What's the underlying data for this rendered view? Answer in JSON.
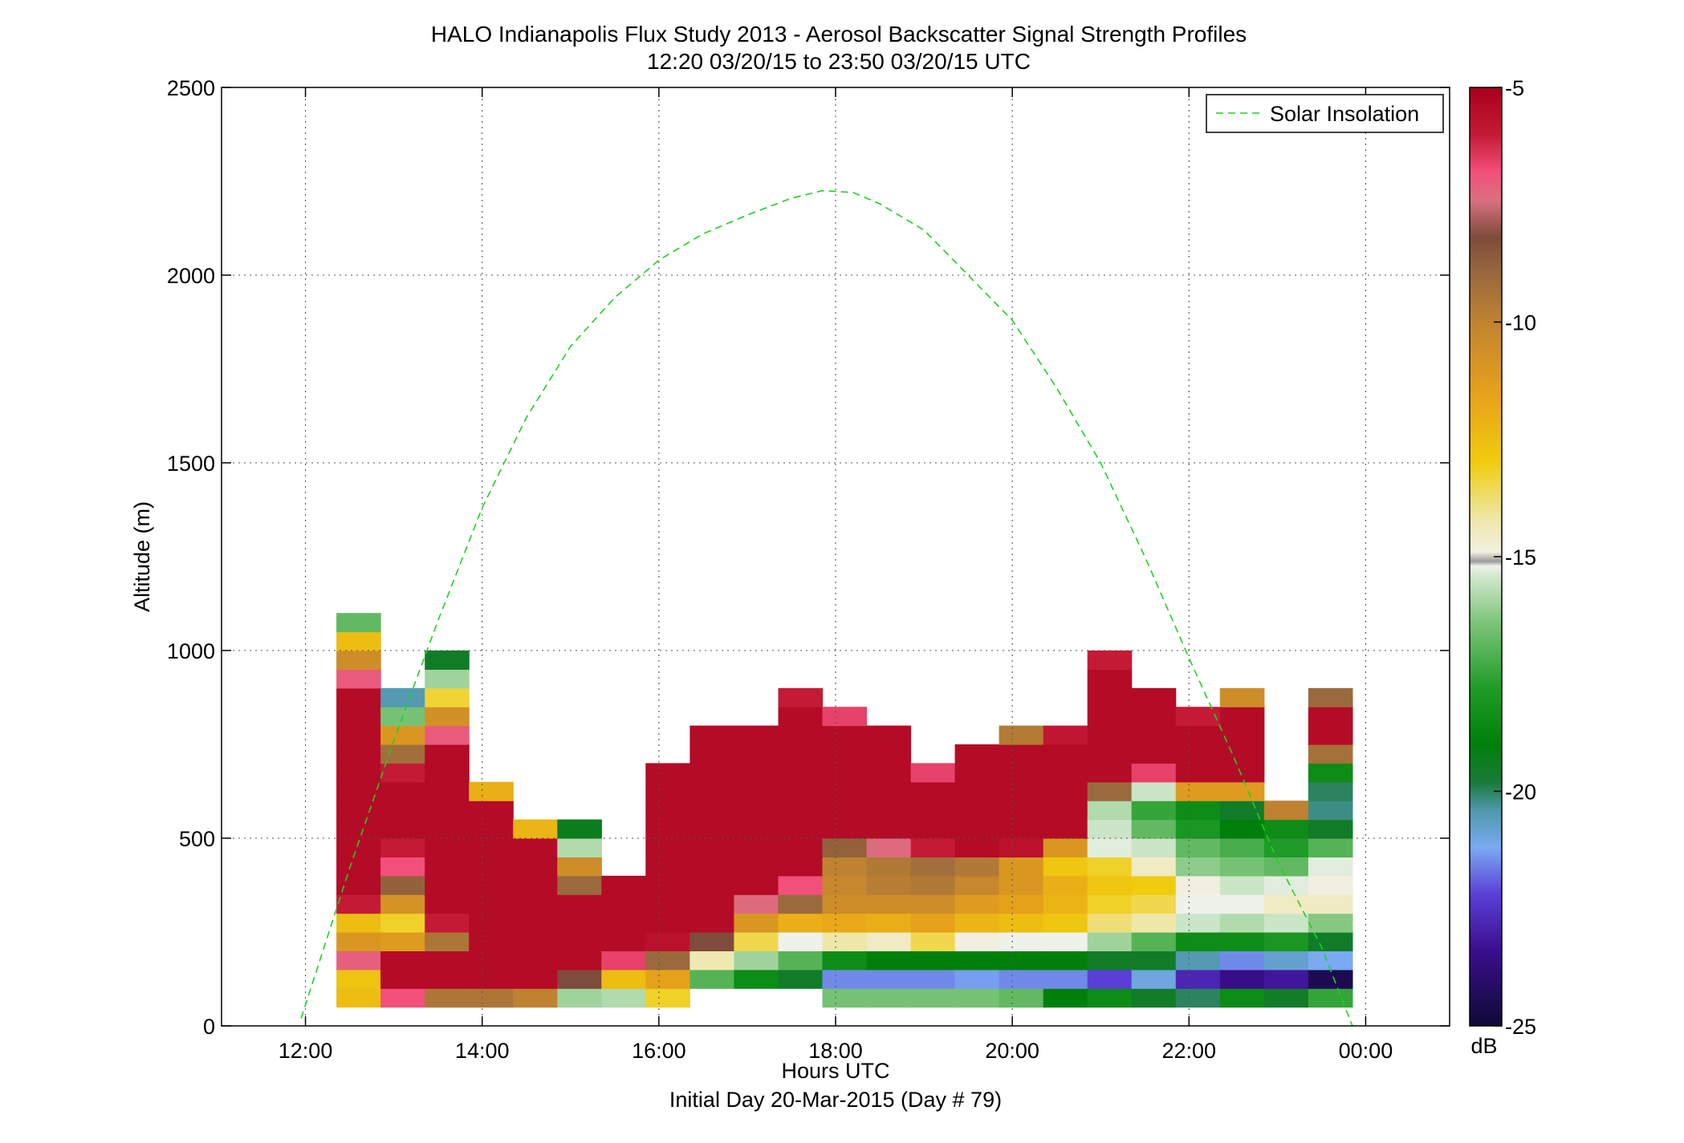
{
  "chart_data": {
    "type": "heatmap",
    "title": "HALO Indianapolis Flux Study 2013 - Aerosol Backscatter Signal Strength Profiles",
    "subtitle": "12:20 03/20/15 to 23:50 03/20/15  UTC",
    "xlabel": "Hours UTC",
    "xlabel2": "Initial Day 20-Mar-2015 (Day # 79)",
    "ylabel": "Altitude (m)",
    "xlim": [
      11.05,
      24.95
    ],
    "ylim": [
      0,
      2500
    ],
    "x_ticks": [
      12,
      14,
      16,
      18,
      20,
      22,
      24
    ],
    "x_tick_labels": [
      "12:00",
      "14:00",
      "16:00",
      "18:00",
      "20:00",
      "22:00",
      "00:00"
    ],
    "y_ticks": [
      0,
      500,
      1000,
      1500,
      2000,
      2500
    ],
    "y_tick_labels": [
      "0",
      "500",
      "1000",
      "1500",
      "2000",
      "2500"
    ],
    "grid": true,
    "legend": {
      "position": "top-right",
      "entries": [
        "Solar Insolation"
      ]
    },
    "colorbar": {
      "label": "dB",
      "range": [
        -25,
        -5
      ],
      "ticks": [
        -5,
        -10,
        -15,
        -20,
        -25
      ],
      "tick_labels": [
        "-5",
        "-10",
        "-15",
        "-20",
        "-25"
      ]
    },
    "cell_width_hours": 0.5,
    "cell_height_m": 50,
    "columns": [
      {
        "x": 12.6,
        "y0": 50,
        "values": [
          -12.5,
          -12.7,
          -7.3,
          -11,
          -12.5,
          -6.2,
          -5.5,
          -5.5,
          -5.5,
          -5.5,
          -5.5,
          -5.5,
          -5.5,
          -5.5,
          -5.5,
          -5.5,
          -5.5,
          -7.2,
          -10.5,
          -12.5,
          -16.8
        ]
      },
      {
        "x": 13.1,
        "y0": 50,
        "values": [
          -7,
          -5.5,
          -5.5,
          -11.2,
          -13.2,
          -10.8,
          -8.8,
          -7,
          -6.2,
          -5.5,
          -5.5,
          -5.5,
          -6.2,
          -9.2,
          -11,
          -16.5,
          -20.5
        ]
      },
      {
        "x": 13.6,
        "y0": 50,
        "values": [
          -9.5,
          -5.5,
          -5.5,
          -9.5,
          -6.2,
          -5.5,
          -5.5,
          -5.5,
          -5.5,
          -5.5,
          -5.5,
          -5.5,
          -5.5,
          -5.5,
          -7.2,
          -10.7,
          -13.3,
          -16,
          -19.5
        ]
      },
      {
        "x": 14.1,
        "y0": 50,
        "values": [
          -9.5,
          -5.5,
          -5.5,
          -5.5,
          -5.5,
          -5.5,
          -5.5,
          -5.5,
          -5.5,
          -5.5,
          -5.5,
          -12
        ]
      },
      {
        "x": 14.6,
        "y0": 50,
        "values": [
          -10,
          -5.5,
          -5.5,
          -5.5,
          -5.5,
          -5.5,
          -5.5,
          -5.5,
          -5.5,
          -12.2
        ]
      },
      {
        "x": 15.1,
        "y0": 50,
        "values": [
          -16,
          -8.2,
          -5.5,
          -5.5,
          -5.5,
          -5.5,
          -9,
          -10.5,
          -15.8,
          -19.3
        ]
      },
      {
        "x": 15.6,
        "y0": 50,
        "values": [
          -15.8,
          -12.5,
          -6.8,
          -5.5,
          -5.5,
          -5.5,
          -5.5
        ]
      },
      {
        "x": 16.1,
        "y0": 50,
        "values": [
          -13.2,
          -11.5,
          -9,
          -5.8,
          -5.5,
          -5.5,
          -5.5,
          -5.5,
          -5.5,
          -5.5,
          -5.5,
          -5.5,
          -5.5
        ]
      },
      {
        "x": 16.6,
        "y0": 100,
        "values": [
          -17,
          -14.3,
          -8.2,
          -5.5,
          -5.5,
          -5.5,
          -5.5,
          -5.5,
          -5.5,
          -5.5,
          -5.5,
          -5.5,
          -5.5,
          -5.5
        ]
      },
      {
        "x": 17.1,
        "y0": 100,
        "values": [
          -18.5,
          -16,
          -13.5,
          -11,
          -7.5,
          -5.5,
          -5.5,
          -5.5,
          -5.5,
          -5.5,
          -5.5,
          -5.5,
          -5.5,
          -5.5
        ]
      },
      {
        "x": 17.6,
        "y0": 100,
        "values": [
          -19.5,
          -17,
          -15,
          -12,
          -9,
          -7,
          -5.5,
          -5.5,
          -5.5,
          -5.5,
          -5.5,
          -5.5,
          -5.5,
          -5.5,
          -5.5,
          -6.2
        ]
      },
      {
        "x": 18.1,
        "y0": 50,
        "values": [
          -16.5,
          -21.5,
          -18.5,
          -14.2,
          -11.8,
          -10.5,
          -10.2,
          -10,
          -8.8,
          -5.5,
          -5.5,
          -5.5,
          -5.5,
          -5.5,
          -5.5,
          -6.8
        ]
      },
      {
        "x": 18.6,
        "y0": 50,
        "values": [
          -16.5,
          -21.5,
          -19,
          -14.5,
          -12,
          -10.5,
          -9.8,
          -9.6,
          -7.5,
          -5.5,
          -5.5,
          -5.5,
          -5.5,
          -5.5,
          -5.5
        ]
      },
      {
        "x": 19.1,
        "y0": 50,
        "values": [
          -16.5,
          -21.5,
          -19,
          -13.5,
          -11.5,
          -10.5,
          -9.6,
          -9.2,
          -6.2,
          -5.5,
          -5.5,
          -5.5,
          -6.8
        ]
      },
      {
        "x": 19.6,
        "y0": 50,
        "values": [
          -16.5,
          -21.3,
          -19,
          -14.8,
          -12.2,
          -11.2,
          -10.2,
          -9.6,
          -5.5,
          -5.5,
          -5.5,
          -5.5,
          -5.5,
          -5.5
        ]
      },
      {
        "x": 20.1,
        "y0": 50,
        "values": [
          -16.8,
          -21.5,
          -19,
          -15,
          -12.5,
          -11.5,
          -11,
          -11,
          -5.8,
          -5.5,
          -5.5,
          -5.5,
          -5.5,
          -5.5,
          -9.7
        ]
      },
      {
        "x": 20.6,
        "y0": 50,
        "values": [
          -19,
          -21.5,
          -19,
          -15,
          -12.8,
          -12.2,
          -12,
          -12.8,
          -11,
          -5.5,
          -5.5,
          -5.5,
          -5.5,
          -5.5,
          -6
        ]
      },
      {
        "x": 21.1,
        "y0": 50,
        "values": [
          -18.5,
          -22.2,
          -19.5,
          -16,
          -13.8,
          -13.2,
          -12.8,
          -13.2,
          -15.2,
          -15.5,
          -15.8,
          -9,
          -5.5,
          -5.5,
          -5.5,
          -5.5,
          -5.5,
          -5.5,
          -6.2
        ]
      },
      {
        "x": 21.6,
        "y0": 50,
        "values": [
          -19.5,
          -21,
          -19.5,
          -17,
          -14.2,
          -13.5,
          -13,
          -14.5,
          -15.5,
          -16.8,
          -17.5,
          -15.5,
          -6.8,
          -5.5,
          -5.5,
          -5.5,
          -5.5
        ]
      },
      {
        "x": 22.1,
        "y0": 50,
        "values": [
          -20,
          -22.8,
          -20.5,
          -18.5,
          -15.5,
          -15,
          -14.8,
          -16.2,
          -16.8,
          -18,
          -18.5,
          -11.2,
          -5.5,
          -5.5,
          -5.5,
          -6.2
        ]
      },
      {
        "x": 22.6,
        "y0": 50,
        "values": [
          -18.5,
          -23.5,
          -21.5,
          -18.5,
          -15.8,
          -15,
          -15.5,
          -16.5,
          -17.2,
          -19,
          -19.5,
          -11.2,
          -5.5,
          -5.5,
          -5.5,
          -5.5,
          -10.5
        ]
      },
      {
        "x": 23.1,
        "y0": 50,
        "values": [
          -19.5,
          -23.2,
          -20.8,
          -18,
          -15.5,
          -14.5,
          -15.2,
          -16.8,
          -17.8,
          -18.5,
          -10
        ]
      },
      {
        "x": 23.6,
        "y0": 50,
        "values": [
          -17.5,
          -24.5,
          -21.2,
          -19.5,
          -16.3,
          -14.5,
          -14.8,
          -15.2,
          -17,
          -19.5,
          -20.2,
          -20,
          -18.5,
          -9.3,
          -5.5,
          -5.5,
          -9
        ]
      }
    ],
    "solar_insolation": {
      "x": [
        11.95,
        12.5,
        13,
        13.5,
        14,
        14.5,
        15,
        15.5,
        16,
        16.5,
        17,
        17.5,
        17.85,
        18.2,
        18.5,
        19,
        19.5,
        20,
        20.5,
        21,
        21.5,
        22,
        22.5,
        23,
        23.5,
        23.85
      ],
      "y": [
        20,
        420,
        760,
        1080,
        1380,
        1620,
        1810,
        1940,
        2040,
        2110,
        2160,
        2205,
        2225,
        2220,
        2190,
        2120,
        2000,
        1880,
        1700,
        1500,
        1250,
        980,
        720,
        440,
        210,
        0
      ],
      "color": "#1fd11f"
    }
  }
}
